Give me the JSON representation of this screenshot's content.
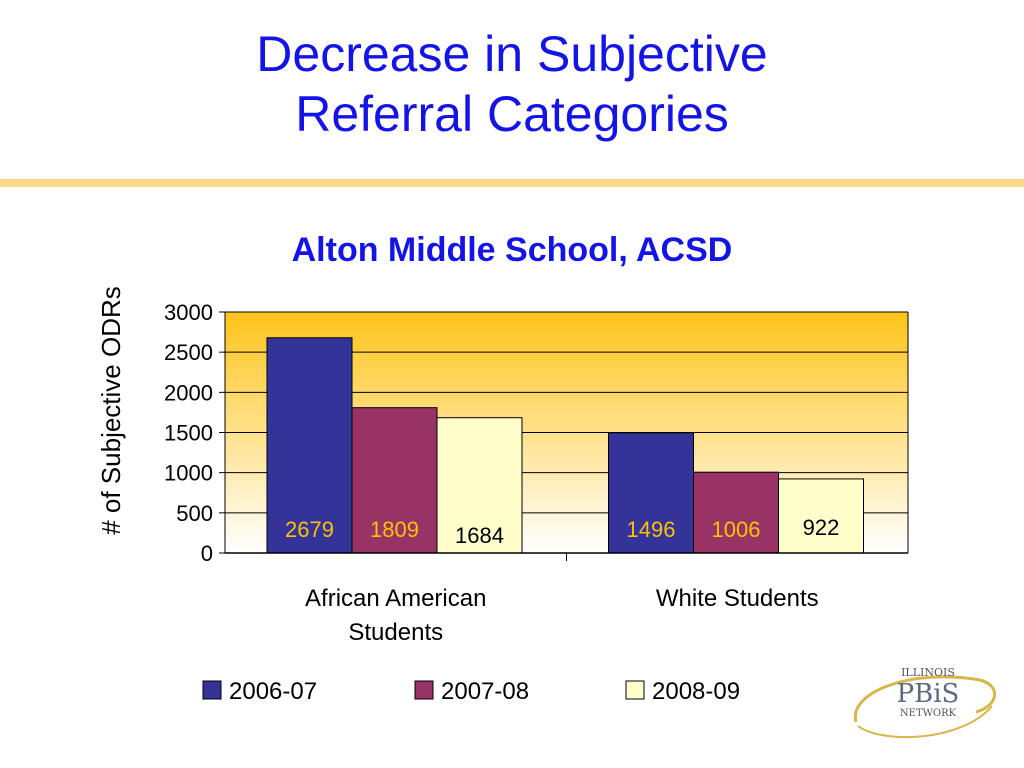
{
  "slide": {
    "title_line1": "Decrease in Subjective",
    "title_line2": "Referral Categories"
  },
  "logo": {
    "line1": "ILLINOIS",
    "line2": "PBiS",
    "line3": "NETWORK"
  },
  "colors": {
    "title": "#1414e6",
    "rule": "#fbd98a",
    "plot_top": "#ffc41a",
    "plot_bottom": "#ffffff",
    "series": [
      "#333399",
      "#993366",
      "#ffffcc"
    ],
    "label_on_dark": "#ffc000",
    "label_on_light": "#000000"
  },
  "chart_data": {
    "type": "bar",
    "title": "Alton Middle School, ACSD",
    "ylabel": "# of Subjective ODRs",
    "xlabel": "",
    "ylim": [
      0,
      3000
    ],
    "yticks": [
      0,
      500,
      1000,
      1500,
      2000,
      2500,
      3000
    ],
    "categories": [
      [
        "African American",
        "Students"
      ],
      [
        "White Students"
      ]
    ],
    "series": [
      {
        "name": "2006-07",
        "values": [
          2679,
          1496
        ]
      },
      {
        "name": "2007-08",
        "values": [
          1809,
          1006
        ]
      },
      {
        "name": "2008-09",
        "values": [
          1684,
          922
        ]
      }
    ],
    "grid": true,
    "legend": "bottom"
  }
}
